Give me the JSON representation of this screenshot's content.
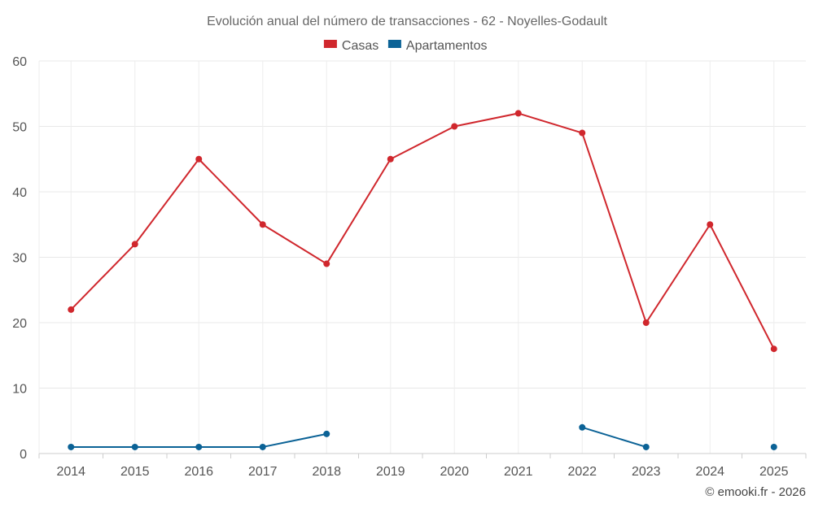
{
  "chart_data": {
    "type": "line",
    "title": "Evolución anual del número de transacciones - 62 - Noyelles-Godault",
    "xlabel": "",
    "ylabel": "",
    "categories": [
      "2014",
      "2015",
      "2016",
      "2017",
      "2018",
      "2019",
      "2020",
      "2021",
      "2022",
      "2023",
      "2024",
      "2025"
    ],
    "ylim": [
      0,
      60
    ],
    "yticks": [
      0,
      10,
      20,
      30,
      40,
      50,
      60
    ],
    "grid": true,
    "legend_position": "top-center",
    "series": [
      {
        "name": "Casas",
        "color": "#d0272d",
        "values": [
          22,
          32,
          45,
          35,
          29,
          45,
          50,
          52,
          49,
          20,
          35,
          16
        ]
      },
      {
        "name": "Apartamentos",
        "color": "#0b6296",
        "values": [
          1,
          1,
          1,
          1,
          3,
          null,
          null,
          null,
          4,
          1,
          null,
          1
        ]
      }
    ],
    "credit": "© emooki.fr - 2026"
  }
}
